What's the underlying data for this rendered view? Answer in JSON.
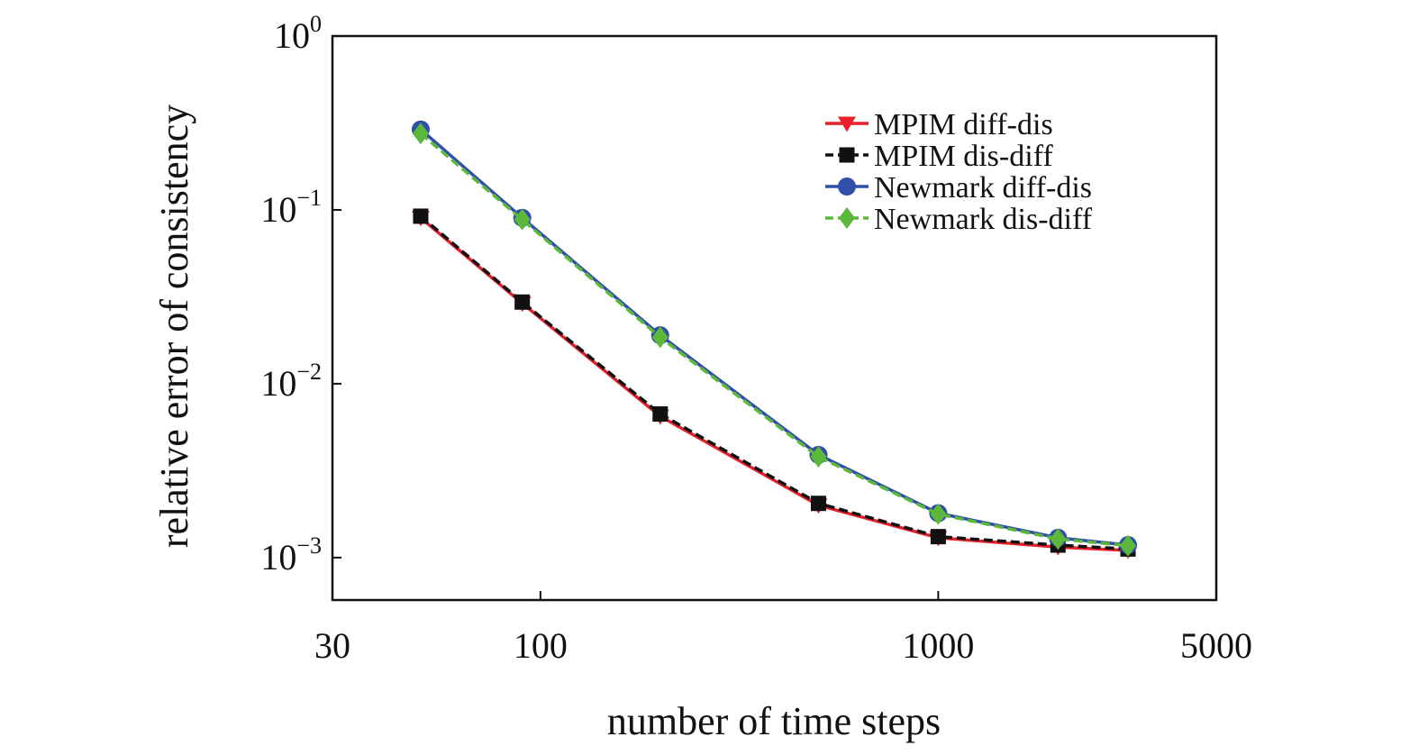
{
  "chart_data": {
    "type": "line",
    "title": "",
    "xlabel": "number of time steps",
    "ylabel": "relative error of consistency",
    "xscale": "log",
    "yscale": "log",
    "xlim": [
      30,
      5000
    ],
    "ylim": [
      0.00057,
      1
    ],
    "x_ticks": [
      30,
      100,
      1000,
      5000
    ],
    "x_tick_labels": [
      "30",
      "100",
      "1000",
      "5000"
    ],
    "y_ticks": [
      {
        "value": 1,
        "base": "10",
        "exp": "0"
      },
      {
        "value": 0.1,
        "base": "10",
        "exp": "−1"
      },
      {
        "value": 0.01,
        "base": "10",
        "exp": "−2"
      },
      {
        "value": 0.001,
        "base": "10",
        "exp": "−3"
      }
    ],
    "grid": false,
    "legend_position": "top-right",
    "x": [
      50,
      90,
      200,
      500,
      1000,
      2000,
      3000
    ],
    "series": [
      {
        "name": "MPIM diff-dis",
        "color": "#e8202a",
        "marker": "triangle-down",
        "dash": "solid",
        "values": [
          0.09,
          0.029,
          0.0065,
          0.002,
          0.0013,
          0.00115,
          0.0011
        ]
      },
      {
        "name": "MPIM dis-diff",
        "color": "#111111",
        "marker": "square",
        "dash": "dashed",
        "values": [
          0.092,
          0.0295,
          0.0067,
          0.00205,
          0.00132,
          0.00118,
          0.00112
        ]
      },
      {
        "name": "Newmark diff-dis",
        "color": "#2f4fa8",
        "marker": "circle",
        "dash": "solid",
        "values": [
          0.29,
          0.09,
          0.019,
          0.0039,
          0.0018,
          0.0013,
          0.00118
        ]
      },
      {
        "name": "Newmark dis-diff",
        "color": "#5cb83a",
        "marker": "diamond",
        "dash": "dashed",
        "values": [
          0.275,
          0.088,
          0.0185,
          0.0038,
          0.00178,
          0.00128,
          0.00117
        ]
      }
    ]
  }
}
